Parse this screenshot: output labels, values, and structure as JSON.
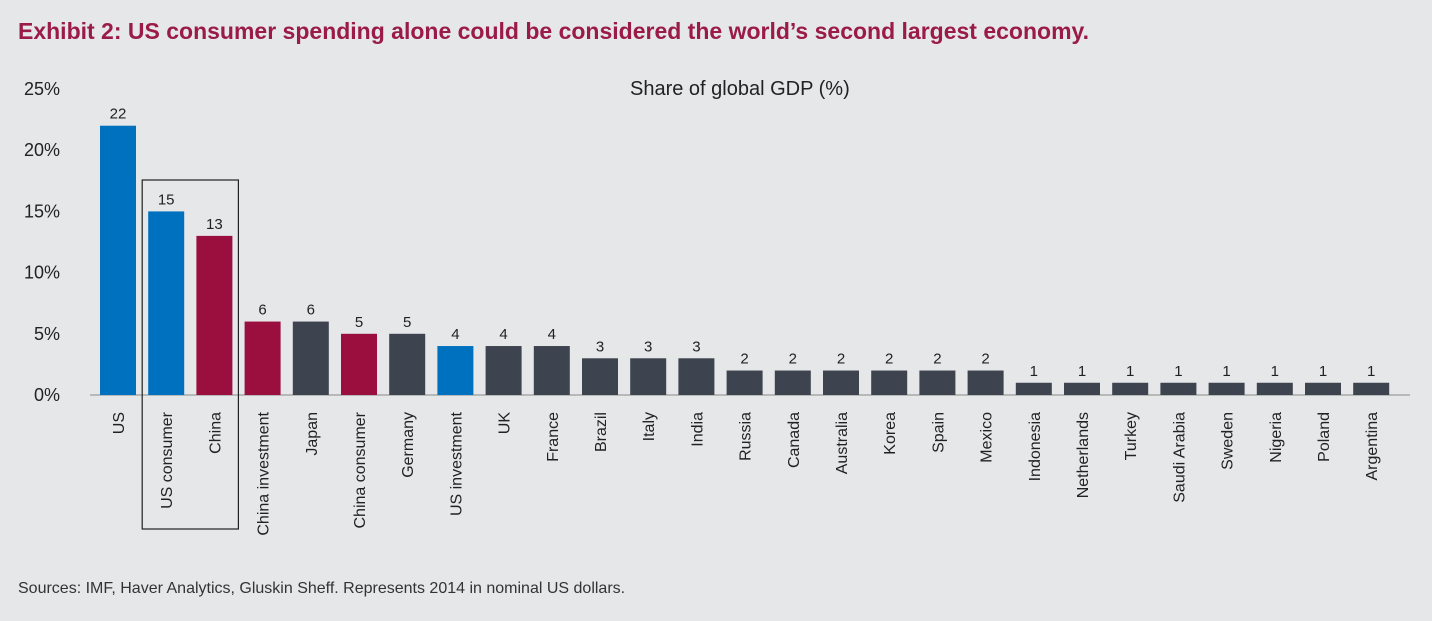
{
  "header": {
    "title": "Exhibit 2: US consumer spending alone could be considered the world’s second largest economy."
  },
  "footer": {
    "sources": "Sources: IMF, Haver Analytics, Gluskin Sheff. Represents 2014 in nominal US dollars."
  },
  "colors": {
    "us_blue": "#0071bf",
    "china_red": "#9b0f3f",
    "other_gray": "#3d4450",
    "title_red": "#9b1b47",
    "background": "#e6e7e8"
  },
  "chart_data": {
    "type": "bar",
    "title": "Share of global GDP (%)",
    "xlabel": "",
    "ylabel": "",
    "ylim": [
      0,
      25
    ],
    "yticks": [
      0,
      5,
      10,
      15,
      20,
      25
    ],
    "ytick_labels": [
      "0%",
      "5%",
      "10%",
      "15%",
      "20%",
      "25%"
    ],
    "grid": false,
    "highlight_box": [
      "US consumer",
      "China"
    ],
    "categories": [
      "US",
      "US consumer",
      "China",
      "China investment",
      "Japan",
      "China consumer",
      "Germany",
      "US investment",
      "UK",
      "France",
      "Brazil",
      "Italy",
      "India",
      "Russia",
      "Canada",
      "Australia",
      "Korea",
      "Spain",
      "Mexico",
      "Indonesia",
      "Netherlands",
      "Turkey",
      "Saudi Arabia",
      "Sweden",
      "Nigeria",
      "Poland",
      "Argentina"
    ],
    "values": [
      22,
      15,
      13,
      6,
      6,
      5,
      5,
      4,
      4,
      4,
      3,
      3,
      3,
      2,
      2,
      2,
      2,
      2,
      2,
      1,
      1,
      1,
      1,
      1,
      1,
      1,
      1
    ],
    "bar_groups": [
      "us",
      "us",
      "china",
      "china",
      "other",
      "china",
      "other",
      "us",
      "other",
      "other",
      "other",
      "other",
      "other",
      "other",
      "other",
      "other",
      "other",
      "other",
      "other",
      "other",
      "other",
      "other",
      "other",
      "other",
      "other",
      "other",
      "other"
    ]
  }
}
